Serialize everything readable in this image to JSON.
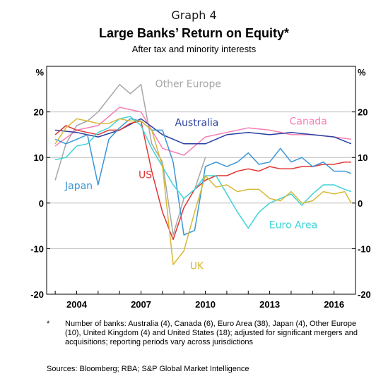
{
  "header": {
    "graph_label": "Graph 4",
    "title": "Large Banks’ Return on Equity*",
    "subtitle": "After tax and minority interests"
  },
  "footnote": {
    "marker": "*",
    "text": "Number of banks: Australia (4), Canada (6), Euro Area (38), Japan (4), Other Europe (10), United Kingdom (4) and United States (18); adjusted for significant mergers and acquisitions; reporting periods vary across jurisdictions"
  },
  "sources": "Sources:  Bloomberg; RBA; S&P Global Market Intelligence",
  "chart_data": {
    "type": "line",
    "y_unit_left": "%",
    "y_unit_right": "%",
    "ylim": [
      -20,
      30
    ],
    "xlim": [
      2002.6,
      2017.0
    ],
    "y_ticks": [
      -20,
      -10,
      0,
      10,
      20
    ],
    "x_ticks": [
      2004,
      2007,
      2010,
      2013,
      2016
    ],
    "grid": true,
    "series": [
      {
        "name": "Other Europe",
        "color": "#a6a6a6",
        "x": [
          2003,
          2003.5,
          2004,
          2004.5,
          2005,
          2005.5,
          2006,
          2006.5,
          2007,
          2007.5,
          2008,
          2008.5,
          2009,
          2009.5,
          2010
        ],
        "values": [
          5,
          13,
          17,
          18,
          20,
          23,
          26,
          24,
          26,
          13,
          9,
          -7,
          1,
          3,
          10
        ]
      },
      {
        "name": "Canada",
        "color": "#f77fb4",
        "x": [
          2003,
          2004,
          2005,
          2006,
          2007,
          2008,
          2009,
          2010,
          2011,
          2012,
          2013,
          2014,
          2015,
          2016,
          2016.8
        ],
        "values": [
          12.5,
          16,
          17,
          21,
          20,
          12,
          10.5,
          14.5,
          15.5,
          16.5,
          16,
          15,
          15,
          14.5,
          14
        ]
      },
      {
        "name": "Australia",
        "color": "#2a3f9f",
        "x": [
          2003,
          2004,
          2005,
          2006,
          2007,
          2008,
          2009,
          2010,
          2011,
          2012,
          2013,
          2014,
          2015,
          2016,
          2016.8
        ],
        "values": [
          16,
          15.5,
          14.5,
          16,
          18.5,
          15,
          13,
          13,
          15,
          15.5,
          15,
          15.5,
          15,
          14.5,
          13
        ]
      },
      {
        "name": "US",
        "color": "#e03535",
        "x": [
          2003,
          2003.5,
          2004,
          2004.5,
          2005,
          2005.5,
          2006,
          2006.5,
          2007,
          2007.5,
          2008,
          2008.5,
          2009,
          2009.5,
          2010,
          2010.5,
          2011,
          2011.5,
          2012,
          2012.5,
          2013,
          2013.5,
          2014,
          2014.5,
          2015,
          2015.5,
          2016,
          2016.5,
          2016.8
        ],
        "values": [
          15,
          17,
          16,
          15.5,
          15,
          16,
          16,
          17.5,
          18,
          7,
          -2,
          -8,
          -1,
          3,
          5,
          6,
          6,
          7,
          7.5,
          7,
          8,
          7.5,
          7.5,
          8,
          8,
          8.5,
          8.5,
          9,
          9
        ]
      },
      {
        "name": "Japan",
        "color": "#3a95d6",
        "x": [
          2003,
          2003.5,
          2004,
          2004.5,
          2005,
          2005.5,
          2006,
          2006.5,
          2007,
          2007.5,
          2008,
          2008.5,
          2009,
          2009.5,
          2010,
          2010.5,
          2011,
          2011.5,
          2012,
          2012.5,
          2013,
          2013.5,
          2014,
          2014.5,
          2015,
          2015.5,
          2016,
          2016.5,
          2016.8
        ],
        "values": [
          14,
          13,
          14,
          15,
          4,
          14,
          16.5,
          18.5,
          18,
          16,
          16,
          9,
          -7,
          -6,
          8,
          9,
          8,
          9,
          11,
          8.5,
          9,
          12,
          9,
          10,
          8,
          9,
          7,
          7,
          6.5
        ]
      },
      {
        "name": "Euro Area",
        "color": "#3fd3d8",
        "x": [
          2003,
          2003.5,
          2004,
          2004.5,
          2005,
          2005.5,
          2006,
          2006.5,
          2007,
          2007.5,
          2008,
          2008.5,
          2009,
          2009.5,
          2010,
          2010.5,
          2011,
          2011.5,
          2012,
          2012.5,
          2013,
          2013.5,
          2014,
          2014.5,
          2015,
          2015.5,
          2016,
          2016.5,
          2016.8
        ],
        "values": [
          9.5,
          10,
          12.5,
          13,
          15.5,
          16.5,
          18.5,
          19,
          17,
          12,
          8,
          4,
          1,
          3,
          6,
          6,
          2,
          -2,
          -5.5,
          -2,
          0,
          1,
          2,
          -0.5,
          2,
          4,
          4,
          3,
          2.5
        ]
      },
      {
        "name": "UK",
        "color": "#d7b934",
        "x": [
          2003,
          2003.5,
          2004,
          2004.5,
          2005,
          2005.5,
          2006,
          2006.5,
          2007,
          2007.5,
          2008,
          2008.5,
          2009,
          2009.5,
          2010,
          2010.5,
          2011,
          2011.5,
          2012,
          2012.5,
          2013,
          2013.5,
          2014,
          2014.5,
          2015,
          2015.5,
          2016,
          2016.5,
          2016.8
        ],
        "values": [
          13,
          16.5,
          18.5,
          18,
          17.5,
          17.5,
          18.5,
          18,
          18,
          16,
          8,
          -13.5,
          -10.5,
          -2,
          6,
          3.5,
          4,
          2.5,
          3,
          3,
          1,
          0.5,
          2.5,
          0,
          0.5,
          2.5,
          2,
          2.5,
          0
        ]
      }
    ],
    "labels": [
      {
        "text": "Other Europe",
        "series": "Other Europe",
        "x": 2009.2,
        "y": 25.4
      },
      {
        "text": "Canada",
        "series": "Canada",
        "x": 2014.8,
        "y": 17.2
      },
      {
        "text": "Australia",
        "series": "Australia",
        "x": 2009.6,
        "y": 16.9
      },
      {
        "text": "US",
        "series": "US",
        "x": 2007.2,
        "y": 5.5
      },
      {
        "text": "Japan",
        "series": "Japan",
        "x": 2004.1,
        "y": 3.1
      },
      {
        "text": "Euro Area",
        "series": "Euro Area",
        "x": 2014.1,
        "y": -5.5
      },
      {
        "text": "UK",
        "series": "UK",
        "x": 2009.6,
        "y": -14.5
      }
    ]
  }
}
